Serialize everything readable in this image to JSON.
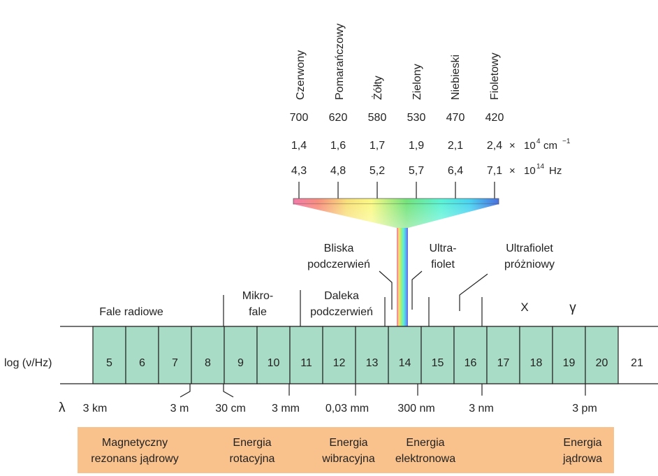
{
  "visible": {
    "colors": [
      "Czerwony",
      "Pomarańczowy",
      "Żółty",
      "Zielony",
      "Niebieski",
      "Fioletowy"
    ],
    "wavelength_nm": [
      "700",
      "620",
      "580",
      "530",
      "470",
      "420"
    ],
    "wavenumber": [
      "1,4",
      "1,6",
      "1,7",
      "1,9",
      "2,1",
      "2,4"
    ],
    "wavenumber_unit": {
      "times": "×",
      "base": "10",
      "exp": "4",
      "unit": "cm",
      "unit_exp": "−1"
    },
    "frequency": [
      "4,3",
      "4,8",
      "5,2",
      "5,7",
      "6,4",
      "7,1"
    ],
    "frequency_unit": {
      "times": "×",
      "base": "10",
      "exp": "14",
      "unit": "Hz"
    }
  },
  "regions": {
    "radio": "Fale radiowe",
    "micro": [
      "Mikro-",
      "fale"
    ],
    "far_ir": [
      "Daleka",
      "podczerwień"
    ],
    "near_ir": [
      "Bliska",
      "podczerwień"
    ],
    "uv": [
      "Ultra-",
      "fiolet"
    ],
    "vuv": [
      "Ultrafiolet",
      "próżniowy"
    ],
    "x": "X",
    "gamma": "γ"
  },
  "axis": {
    "label": "log (ν/Hz)",
    "cells": [
      "5",
      "6",
      "7",
      "8",
      "9",
      "10",
      "11",
      "12",
      "13",
      "14",
      "15",
      "16",
      "17",
      "18",
      "19",
      "20"
    ],
    "outside": "21"
  },
  "lambda": {
    "symbol": "λ",
    "labels": [
      "3 km",
      "3 m",
      "30 cm",
      "3 mm",
      "0,03 mm",
      "300 nm",
      "3 nm",
      "3 pm"
    ]
  },
  "energies": [
    [
      "Magnetyczny",
      "rezonans jądrowy"
    ],
    [
      "Energia",
      "rotacyjna"
    ],
    [
      "Energia",
      "wibracyjna"
    ],
    [
      "Energia",
      "elektronowa"
    ],
    [
      "Energia",
      "jądrowa"
    ]
  ],
  "palette": {
    "cell": "#a9dcc6",
    "band": "#f9c18c",
    "line": "#222222"
  }
}
